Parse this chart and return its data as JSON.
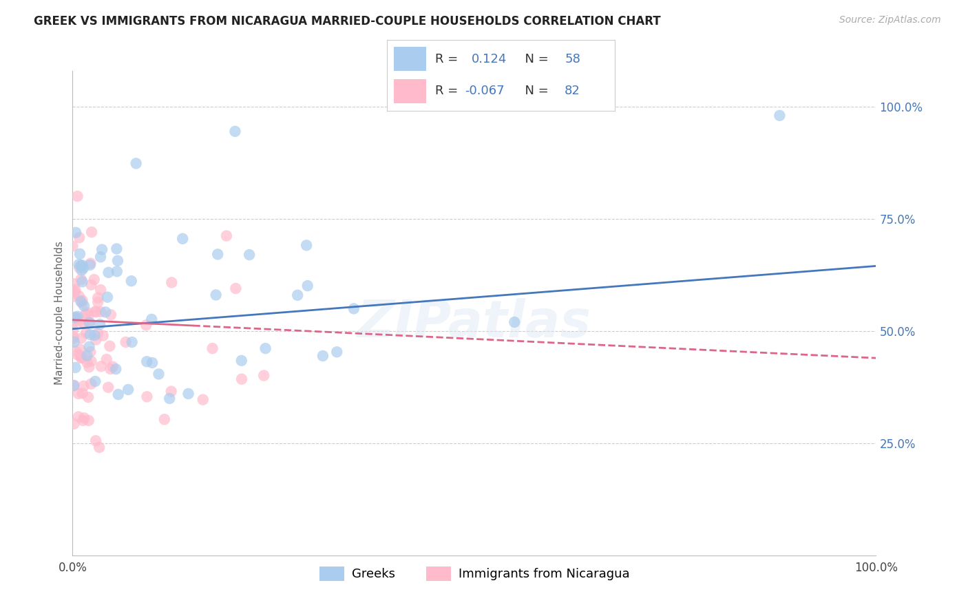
{
  "title": "GREEK VS IMMIGRANTS FROM NICARAGUA MARRIED-COUPLE HOUSEHOLDS CORRELATION CHART",
  "source": "Source: ZipAtlas.com",
  "ylabel": "Married-couple Households",
  "r1": 0.124,
  "n1": 58,
  "r2": -0.067,
  "n2": 82,
  "blue_color": "#aaccee",
  "pink_color": "#ffbbcc",
  "trend_blue": "#4477bb",
  "trend_pink": "#dd6688",
  "label_color": "#4477bb",
  "background": "#ffffff",
  "legend_label1": "Greeks",
  "legend_label2": "Immigrants from Nicaragua",
  "watermark": "ZIPatlas",
  "seed": 42
}
